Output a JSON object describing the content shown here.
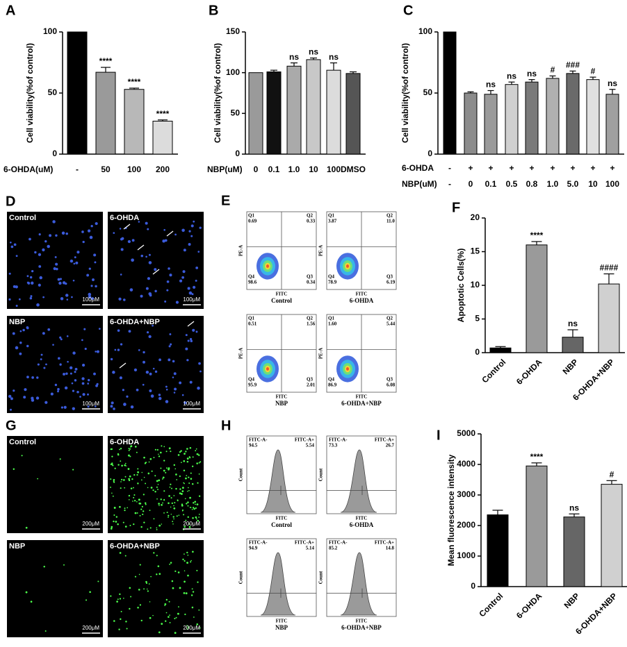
{
  "chart_data": [
    {
      "type": "bar",
      "panel": "A",
      "ylabel": "Cell viability(%of control)",
      "xlabel": "6-OHDA(uM)",
      "categories": [
        "-",
        "50",
        "100",
        "200"
      ],
      "values": [
        100,
        67,
        53,
        27
      ],
      "errors": [
        null,
        4,
        1,
        1
      ],
      "colors": [
        "#000000",
        "#9a9a9a",
        "#b8b8b8",
        "#dcdcdc"
      ],
      "annotations": [
        {
          "index": 1,
          "text": "****"
        },
        {
          "index": 2,
          "text": "****"
        },
        {
          "index": 3,
          "text": "****"
        }
      ],
      "ylim": [
        0,
        100
      ],
      "yticks": [
        0,
        50,
        100
      ]
    },
    {
      "type": "bar",
      "panel": "B",
      "ylabel": "Cell viability(%of control)",
      "xlabel": "NBP(uM)",
      "categories": [
        "0",
        "0.1",
        "1.0",
        "10",
        "100",
        "DMSO"
      ],
      "values": [
        100,
        101,
        108,
        116,
        103,
        99
      ],
      "errors": [
        null,
        2,
        4,
        2,
        9,
        2
      ],
      "colors": [
        "#9a9a9a",
        "#111111",
        "#aaaaaa",
        "#c8c8c8",
        "#dcdcdc",
        "#555555"
      ],
      "annotations": [
        {
          "index": 2,
          "text": "ns"
        },
        {
          "index": 3,
          "text": "ns"
        },
        {
          "index": 4,
          "text": "ns"
        }
      ],
      "ylim": [
        0,
        150
      ],
      "yticks": [
        0,
        50,
        100,
        150
      ]
    },
    {
      "type": "bar",
      "panel": "C",
      "ylabel": "Cell viability(%of control)",
      "category_rows": [
        {
          "label": "6-OHDA",
          "values": [
            "-",
            "+",
            "+",
            "+",
            "+",
            "+",
            "+",
            "+",
            "+"
          ]
        },
        {
          "label": "NBP(uM)",
          "values": [
            "-",
            "0",
            "0.1",
            "0.5",
            "0.8",
            "1.0",
            "5.0",
            "10",
            "100"
          ]
        }
      ],
      "values": [
        100,
        50,
        49,
        57,
        59,
        62,
        66,
        61,
        49
      ],
      "errors": [
        null,
        1,
        3,
        2,
        2,
        2,
        2,
        2,
        4
      ],
      "colors": [
        "#000000",
        "#8c8c8c",
        "#9a9a9a",
        "#d0d0d0",
        "#7a7a7a",
        "#b0b0b0",
        "#6a6a6a",
        "#e0e0e0",
        "#a0a0a0"
      ],
      "annotations": [
        {
          "index": 2,
          "text": "ns"
        },
        {
          "index": 3,
          "text": "ns"
        },
        {
          "index": 4,
          "text": "ns"
        },
        {
          "index": 5,
          "text": "#"
        },
        {
          "index": 6,
          "text": "###"
        },
        {
          "index": 7,
          "text": "#"
        },
        {
          "index": 8,
          "text": "ns"
        }
      ],
      "ylim": [
        0,
        100
      ],
      "yticks": [
        0,
        50,
        100
      ]
    },
    {
      "type": "bar",
      "panel": "F",
      "ylabel": "Apoptotic Cells(%)",
      "categories": [
        "Control",
        "6-OHDA",
        "NBP",
        "6-OHDA+NBP"
      ],
      "values": [
        0.7,
        16,
        2.3,
        10.2
      ],
      "errors": [
        0.2,
        0.5,
        1.1,
        1.5
      ],
      "colors": [
        "#000000",
        "#9a9a9a",
        "#666666",
        "#d0d0d0"
      ],
      "annotations": [
        {
          "index": 1,
          "text": "****"
        },
        {
          "index": 2,
          "text": "ns"
        },
        {
          "index": 3,
          "text": "####"
        }
      ],
      "ylim": [
        0,
        20
      ],
      "yticks": [
        0,
        5,
        10,
        15,
        20
      ]
    },
    {
      "type": "bar",
      "panel": "I",
      "ylabel": "Mean fluorescence intensity",
      "categories": [
        "Control",
        "6-OHDA",
        "NBP",
        "6-OHDA+NBP"
      ],
      "values": [
        2350,
        3950,
        2280,
        3350
      ],
      "errors": [
        150,
        100,
        100,
        120
      ],
      "colors": [
        "#000000",
        "#9a9a9a",
        "#666666",
        "#d0d0d0"
      ],
      "annotations": [
        {
          "index": 1,
          "text": "****"
        },
        {
          "index": 2,
          "text": "ns"
        },
        {
          "index": 3,
          "text": "#"
        }
      ],
      "ylim": [
        0,
        5000
      ],
      "yticks": [
        0,
        1000,
        2000,
        3000,
        4000,
        5000
      ]
    }
  ],
  "panels": {
    "D": {
      "letter": "D",
      "images": [
        {
          "label": "Control",
          "scale": "100μM"
        },
        {
          "label": "6-OHDA",
          "scale": "100μM"
        },
        {
          "label": "NBP",
          "scale": "100μM"
        },
        {
          "label": "6-OHDA+NBP",
          "scale": "100μM"
        }
      ]
    },
    "G": {
      "letter": "G",
      "images": [
        {
          "label": "Control",
          "scale": "200μM"
        },
        {
          "label": "6-OHDA",
          "scale": "200μM"
        },
        {
          "label": "NBP",
          "scale": "200μM"
        },
        {
          "label": "6-OHDA+NBP",
          "scale": "200μM"
        }
      ]
    },
    "E": {
      "letter": "E",
      "y_axis": "PE-A",
      "x_axis": "FITC",
      "plots": [
        {
          "name": "Control",
          "q1": {
            "label": "Q1",
            "value": "0.69"
          },
          "q2": {
            "label": "Q2",
            "value": "0.33"
          },
          "q4": {
            "label": "Q4",
            "value": "98.6"
          },
          "q3": {
            "label": "Q3",
            "value": "0.34"
          }
        },
        {
          "name": "6-OHDA",
          "q1": {
            "label": "Q1",
            "value": "3.87"
          },
          "q2": {
            "label": "Q2",
            "value": "11.0"
          },
          "q4": {
            "label": "Q4",
            "value": "78.9"
          },
          "q3": {
            "label": "Q3",
            "value": "6.19"
          }
        },
        {
          "name": "NBP",
          "q1": {
            "label": "Q1",
            "value": "0.51"
          },
          "q2": {
            "label": "Q2",
            "value": "1.56"
          },
          "q4": {
            "label": "Q4",
            "value": "95.9"
          },
          "q3": {
            "label": "Q3",
            "value": "2.01"
          }
        },
        {
          "name": "6-OHDA+NBP",
          "q1": {
            "label": "Q1",
            "value": "1.60"
          },
          "q2": {
            "label": "Q2",
            "value": "5.44"
          },
          "q4": {
            "label": "Q4",
            "value": "86.9"
          },
          "q3": {
            "label": "Q3",
            "value": "6.08"
          }
        }
      ]
    },
    "H": {
      "letter": "H",
      "y_axis": "Count",
      "x_axis": "FITC",
      "plots": [
        {
          "name": "Control",
          "neg": {
            "label": "FITC-A-",
            "value": "94.5"
          },
          "pos": {
            "label": "FITC-A+",
            "value": "5.54"
          }
        },
        {
          "name": "6-OHDA",
          "neg": {
            "label": "FITC-A-",
            "value": "73.3"
          },
          "pos": {
            "label": "FITC-A+",
            "value": "26.7"
          }
        },
        {
          "name": "NBP",
          "neg": {
            "label": "FITC-A-",
            "value": "94.9"
          },
          "pos": {
            "label": "FITC-A+",
            "value": "5.14"
          }
        },
        {
          "name": "6-OHDA+NBP",
          "neg": {
            "label": "FITC-A-",
            "value": "85.2"
          },
          "pos": {
            "label": "FITC-A+",
            "value": "14.8"
          }
        }
      ]
    }
  }
}
